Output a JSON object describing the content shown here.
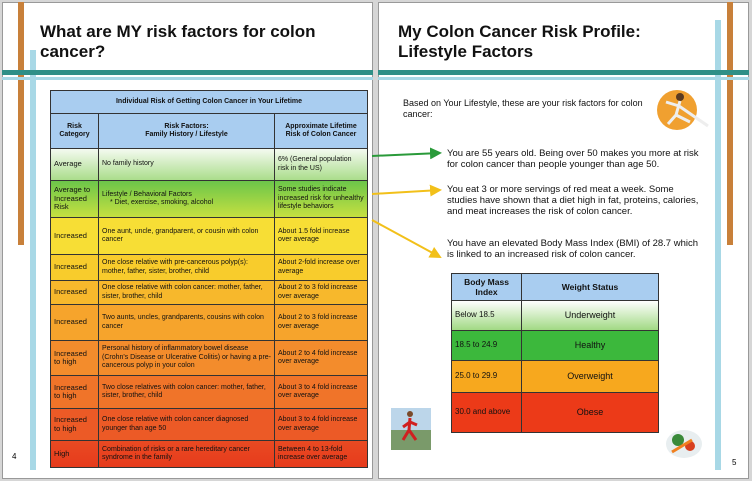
{
  "left": {
    "title": "What are MY risk factors for colon cancer?",
    "page_number": "4",
    "table": {
      "caption": "Individual Risk of Getting Colon Cancer in Your Lifetime",
      "headers": [
        "Risk Category",
        "Risk Factors:\nFamily History / Lifestyle",
        "Approximate Lifetime Risk of Colon Cancer"
      ],
      "rows": [
        {
          "category": "Average",
          "factors": "No family history",
          "risk": "6% (General population risk in the US)"
        },
        {
          "category": "Average to Increased Risk",
          "factors": "Lifestyle / Behavioral Factors",
          "factors_note": "* Diet, exercise, smoking, alcohol",
          "risk": "Some studies indicate increased risk for unhealthy lifestyle behaviors"
        },
        {
          "category": "Increased",
          "factors": "One aunt, uncle, grandparent, or cousin with colon cancer",
          "risk": "About 1.5 fold increase over average"
        },
        {
          "category": "Increased",
          "factors": "One close relative with pre-cancerous polyp(s): mother, father, sister, brother, child",
          "risk": "About 2-fold increase over average"
        },
        {
          "category": "Increased",
          "factors": "One close relative with colon cancer: mother, father, sister, brother, child",
          "risk": "About 2 to 3 fold increase over average"
        },
        {
          "category": "Increased",
          "factors": "Two aunts, uncles, grandparents, cousins with colon cancer",
          "risk": "About 2 to 3 fold increase over average"
        },
        {
          "category": "Increased to high",
          "factors": "Personal history of inflammatory bowel disease (Crohn's Disease or Ulcerative Colitis) or having a pre-cancerous polyp in your colon",
          "risk": "About 2 to 4 fold increase over average"
        },
        {
          "category": "Increased to high",
          "factors": "Two close relatives with colon cancer: mother, father, sister, brother, child",
          "risk": "About 3 to 4 fold increase over average"
        },
        {
          "category": "Increased to high",
          "factors": "One close relative with colon cancer diagnosed younger than age 50",
          "risk": "About 3 to 4 fold increase over average"
        },
        {
          "category": "High",
          "factors": "Combination of risks or a rare hereditary cancer syndrome in the family",
          "risk": "Between 4 to 13-fold increase over average"
        }
      ]
    }
  },
  "right": {
    "title": "My Colon Cancer Risk Profile: Lifestyle Factors",
    "page_number": "5",
    "intro": "Based on Your Lifestyle, these are your risk factors for colon cancer:",
    "points": [
      "You are 55 years old. Being over 50 makes you more at risk for colon cancer than people younger than age 50.",
      "You eat 3 or more servings of red meat a week. Some studies have shown that a diet high in fat, proteins, calories, and meat increases the risk of colon cancer.",
      "You have an elevated Body Mass Index (BMI) of 28.7 which is linked to an increased risk of colon cancer."
    ],
    "bmi_table": {
      "headers": [
        "Body Mass Index",
        "Weight Status"
      ],
      "rows": [
        [
          "Below 18.5",
          "Underweight"
        ],
        [
          "18.5 to 24.9",
          "Healthy"
        ],
        [
          "25.0 to 29.9",
          "Overweight"
        ],
        [
          "30.0 and above",
          "Obese"
        ]
      ]
    }
  }
}
